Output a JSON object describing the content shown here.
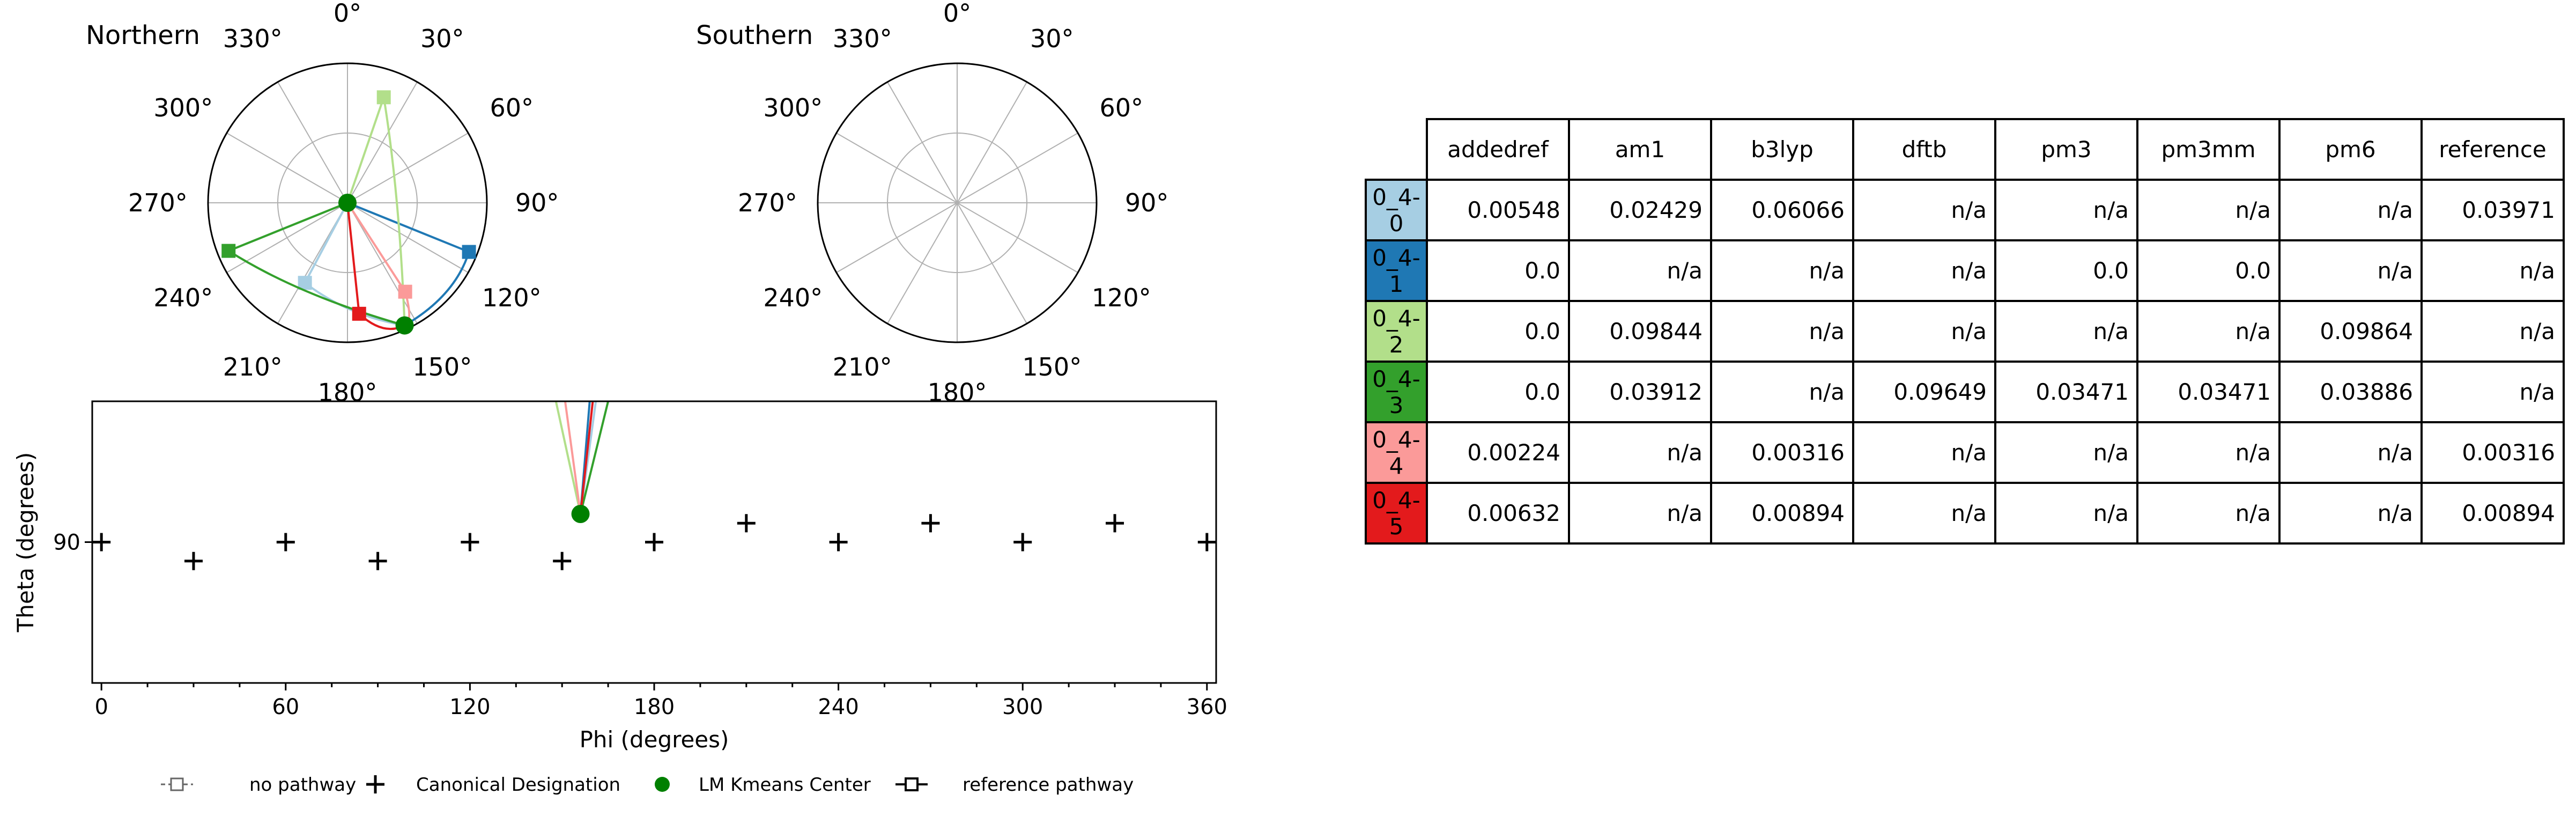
{
  "chart_data": [
    {
      "type": "polar",
      "title": "Northern",
      "angle_labels": [
        "0°",
        "30°",
        "60°",
        "90°",
        "120°",
        "150°",
        "180°",
        "210°",
        "240°",
        "270°",
        "300°",
        "330°"
      ],
      "pathways": [
        {
          "name": "0_4-0",
          "color": "#a6cee3",
          "start": [
            0,
            0
          ],
          "end": [
            208,
            0.65
          ],
          "shape": "square"
        },
        {
          "name": "0_4-1",
          "color": "#1f78b4",
          "start": [
            0,
            0
          ],
          "end": [
            112,
            0.94
          ],
          "shape": "square"
        },
        {
          "name": "0_4-2",
          "color": "#b2df8a",
          "start": [
            0,
            0
          ],
          "end": [
            19,
            0.8
          ],
          "shape": "square"
        },
        {
          "name": "0_4-3",
          "color": "#33a02c",
          "start": [
            0,
            0
          ],
          "end": [
            248,
            0.92
          ],
          "shape": "square"
        },
        {
          "name": "0_4-4",
          "color": "#fb9a99",
          "start": [
            0,
            0
          ],
          "end": [
            147,
            0.76
          ],
          "shape": "square"
        },
        {
          "name": "0_4-5",
          "color": "#e31a1c",
          "start": [
            0,
            0
          ],
          "end": [
            174,
            0.8
          ],
          "shape": "square"
        }
      ],
      "lm_kmeans_centers": [
        [
          0,
          0
        ],
        [
          155,
          0.97
        ]
      ]
    },
    {
      "type": "polar",
      "title": "Southern",
      "angle_labels": [
        "0°",
        "30°",
        "60°",
        "90°",
        "120°",
        "150°",
        "180°",
        "210°",
        "240°",
        "270°",
        "300°",
        "330°"
      ],
      "pathways": []
    },
    {
      "type": "scatter",
      "xlabel": "Phi (degrees)",
      "ylabel": "Theta (degrees)",
      "xlim": [
        -3,
        363
      ],
      "ylim": [
        55,
        125
      ],
      "x_ticks": [
        0,
        60,
        120,
        180,
        240,
        300,
        360
      ],
      "y_ticks": [
        90
      ],
      "canonical_designation": [
        [
          0,
          90
        ],
        [
          30,
          85.3
        ],
        [
          60,
          90
        ],
        [
          90,
          85.3
        ],
        [
          120,
          90
        ],
        [
          150,
          85.3
        ],
        [
          180,
          90
        ],
        [
          210,
          94.7
        ],
        [
          240,
          90
        ],
        [
          270,
          94.7
        ],
        [
          300,
          90
        ],
        [
          330,
          94.7
        ],
        [
          360,
          90
        ]
      ],
      "lm_kmeans_center": [
        156,
        97
      ],
      "pathways": [
        {
          "name": "0_4-0",
          "color": "#a6cee3",
          "from": [
            156,
            97
          ],
          "to": [
            161,
            125
          ]
        },
        {
          "name": "0_4-1",
          "color": "#1f78b4",
          "from": [
            156,
            97
          ],
          "to": [
            159,
            125
          ]
        },
        {
          "name": "0_4-2",
          "color": "#b2df8a",
          "from": [
            156,
            97
          ],
          "to": [
            148,
            125
          ]
        },
        {
          "name": "0_4-3",
          "color": "#33a02c",
          "from": [
            156,
            97
          ],
          "to": [
            165,
            125
          ]
        },
        {
          "name": "0_4-4",
          "color": "#fb9a99",
          "from": [
            156,
            97
          ],
          "to": [
            151,
            125
          ]
        },
        {
          "name": "0_4-5",
          "color": "#e31a1c",
          "from": [
            156,
            97
          ],
          "to": [
            160,
            125
          ]
        }
      ]
    },
    {
      "type": "table",
      "columns": [
        "addedref",
        "am1",
        "b3lyp",
        "dftb",
        "pm3",
        "pm3mm",
        "pm6",
        "reference"
      ],
      "rows": [
        {
          "label": "0_4-0",
          "color": "#a6cee3",
          "values": [
            "0.00548",
            "0.02429",
            "0.06066",
            "n/a",
            "n/a",
            "n/a",
            "n/a",
            "0.03971"
          ]
        },
        {
          "label": "0_4-1",
          "color": "#1f78b4",
          "values": [
            "0.0",
            "n/a",
            "n/a",
            "n/a",
            "0.0",
            "0.0",
            "n/a",
            "n/a"
          ]
        },
        {
          "label": "0_4-2",
          "color": "#b2df8a",
          "values": [
            "0.0",
            "0.09844",
            "n/a",
            "n/a",
            "n/a",
            "n/a",
            "0.09864",
            "n/a"
          ]
        },
        {
          "label": "0_4-3",
          "color": "#33a02c",
          "values": [
            "0.0",
            "0.03912",
            "n/a",
            "0.09649",
            "0.03471",
            "0.03471",
            "0.03886",
            "n/a"
          ]
        },
        {
          "label": "0_4-4",
          "color": "#fb9a99",
          "values": [
            "0.00224",
            "n/a",
            "0.00316",
            "n/a",
            "n/a",
            "n/a",
            "n/a",
            "0.00316"
          ]
        },
        {
          "label": "0_4-5",
          "color": "#e31a1c",
          "values": [
            "0.00632",
            "n/a",
            "0.00894",
            "n/a",
            "n/a",
            "n/a",
            "n/a",
            "0.00894"
          ]
        }
      ]
    }
  ],
  "legend": [
    {
      "label": "no pathway",
      "marker": "dashed-open-square"
    },
    {
      "label": "Canonical Designation",
      "marker": "plus"
    },
    {
      "label": "LM Kmeans Center",
      "marker": "green-dot"
    },
    {
      "label": "reference pathway",
      "marker": "solid-open-square"
    }
  ],
  "colors": {
    "center": "#008000",
    "grid": "#b0b0b0",
    "axis": "#000000"
  }
}
